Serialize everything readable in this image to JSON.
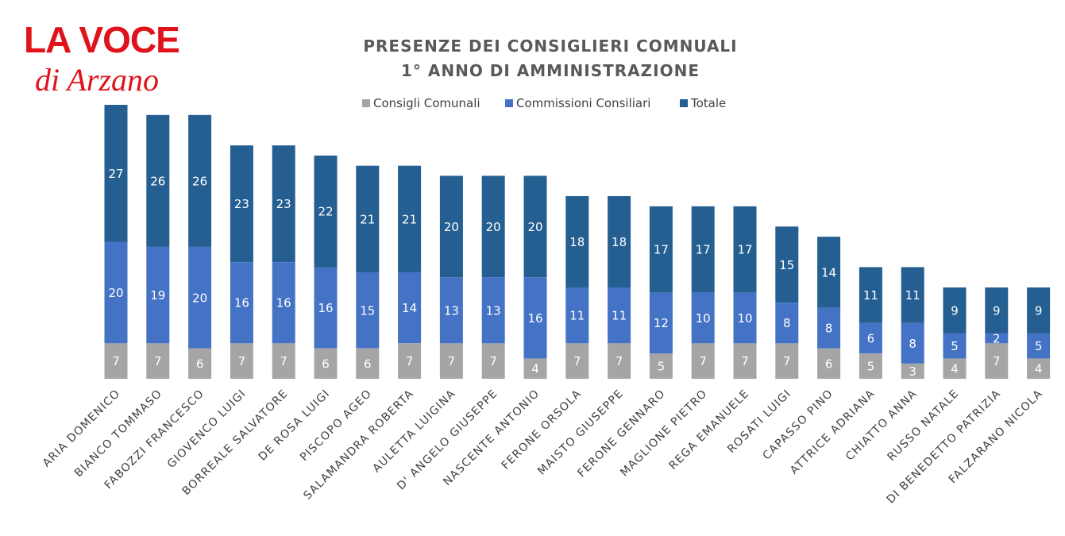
{
  "logo": {
    "line1": "LA VOCE",
    "line2": "di Arzano"
  },
  "chart_data": {
    "type": "bar",
    "stacked": true,
    "title": "PRESENZE DEI CONSIGLIERI COMNUALI",
    "subtitle": "1° ANNO DI AMMINISTRAZIONE",
    "legend_position": "top",
    "grid": false,
    "ylim": [
      0,
      55
    ],
    "categories": [
      "ARIA DOMENICO",
      "BIANCO TOMMASO",
      "FABOZZI FRANCESCO",
      "GIOVENCO LUIGI",
      "BORREALE SALVATORE",
      "DE ROSA LUIGI",
      "PISCOPO AGEO",
      "SALAMANDRA ROBERTA",
      "AULETTA LUIGINA",
      "D' ANGELO GIUSEPPE",
      "NASCENTE ANTONIO",
      "FERONE ORSOLA",
      "MAISTO GIUSEPPE",
      "FERONE GENNARO",
      "MAGLIONE PIETRO",
      "REGA EMANUELE",
      "ROSATI LUIGI",
      "CAPASSO PINO",
      "ATTRICE ADRIANA",
      "CHIATTO ANNA",
      "RUSSO NATALE",
      "DI BENEDETTO PATRIZIA",
      "FALZARANO NICOLA"
    ],
    "series": [
      {
        "name": "Consigli Comunali",
        "color": "#a5a5a5",
        "values": [
          7,
          7,
          6,
          7,
          7,
          6,
          6,
          7,
          7,
          7,
          4,
          7,
          7,
          5,
          7,
          7,
          7,
          6,
          5,
          3,
          4,
          7,
          4
        ]
      },
      {
        "name": "Commissioni Consiliari",
        "color": "#4472c4",
        "values": [
          20,
          19,
          20,
          16,
          16,
          16,
          15,
          14,
          13,
          13,
          16,
          11,
          11,
          12,
          10,
          10,
          8,
          8,
          6,
          8,
          5,
          2,
          5
        ]
      },
      {
        "name": "Totale",
        "color": "#255e91",
        "values": [
          27,
          26,
          26,
          23,
          23,
          22,
          21,
          21,
          20,
          20,
          20,
          18,
          18,
          17,
          17,
          17,
          15,
          14,
          11,
          11,
          9,
          9,
          9
        ]
      }
    ]
  }
}
